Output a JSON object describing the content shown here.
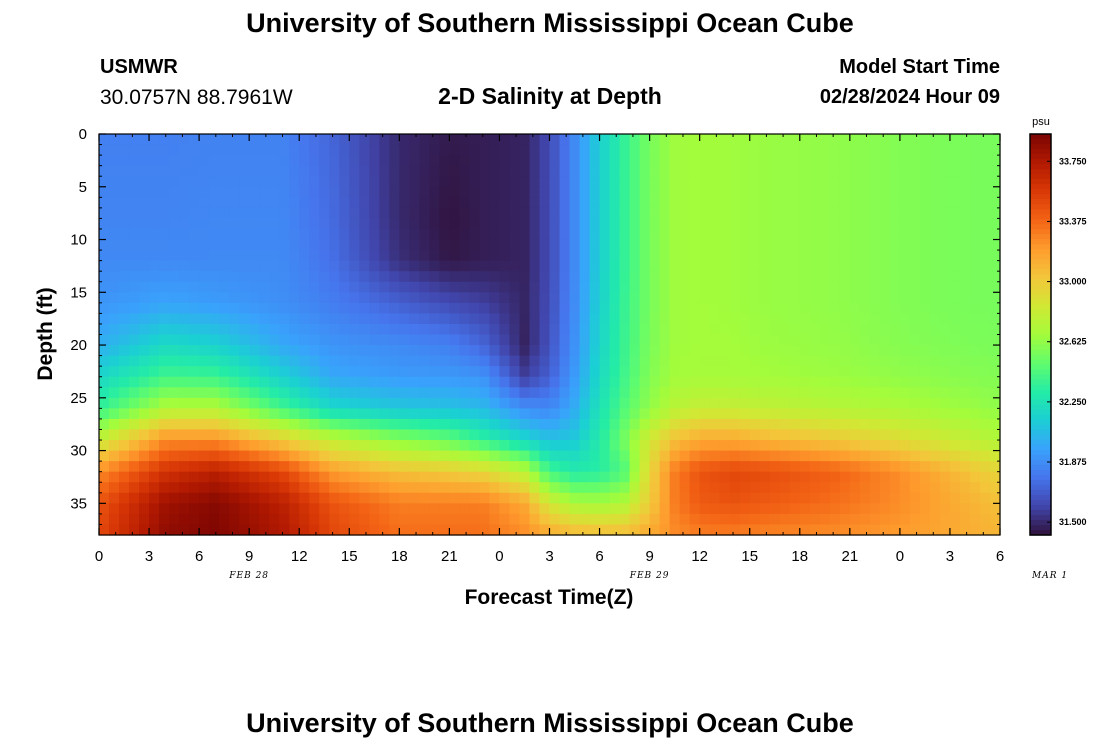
{
  "header": {
    "title": "University of Southern Mississippi Ocean Cube",
    "station": "USMWR",
    "coords": "30.0757N  88.7961W",
    "subtitle": "2-D Salinity at Depth",
    "model_start_label": "Model Start Time",
    "model_start_value": "02/28/2024 Hour 09"
  },
  "footer": {
    "title": "University of Southern Mississippi Ocean Cube"
  },
  "chart_data": {
    "type": "heatmap",
    "xlabel": "Forecast Time(Z)",
    "ylabel": "Depth (ft)",
    "x_tick_labels": [
      "0",
      "3",
      "6",
      "9",
      "12",
      "15",
      "18",
      "21",
      "0",
      "3",
      "6",
      "9",
      "12",
      "15",
      "18",
      "21",
      "0",
      "3",
      "6"
    ],
    "day_labels": [
      {
        "text": "FEB 28",
        "at_hour": 9
      },
      {
        "text": "FEB 29",
        "at_hour": 33
      },
      {
        "text": "MAR 1",
        "at_hour": 57
      }
    ],
    "xlim": [
      0,
      54
    ],
    "y_ticks": [
      0,
      5,
      10,
      15,
      20,
      25,
      30,
      35
    ],
    "ylim": [
      0,
      38
    ],
    "y_inverted": true,
    "colorbar": {
      "unit": "psu",
      "ticks": [
        "31.500",
        "31.875",
        "32.250",
        "32.625",
        "33.000",
        "33.375",
        "33.750"
      ],
      "range": [
        31.42,
        33.92
      ],
      "colors": [
        "#30123b",
        "#4145ab",
        "#4675ed",
        "#39a2fc",
        "#1bcfd4",
        "#24eca6",
        "#61fc6c",
        "#a4fc3b",
        "#d1e834",
        "#f3c63a",
        "#fe9b2d",
        "#f36315",
        "#d93806",
        "#b11901",
        "#7a0402"
      ]
    },
    "columns_hours": [
      0,
      4,
      7,
      11,
      14,
      18,
      21,
      23,
      25.5,
      27,
      28.5,
      30,
      31.5,
      33,
      34.5,
      36,
      38,
      40,
      44,
      48,
      51,
      54
    ],
    "rows_depth_ft": [
      0,
      4,
      8,
      12,
      16,
      20,
      23,
      26,
      29,
      32,
      35,
      38
    ],
    "salinity_psu": [
      [
        31.82,
        31.82,
        31.83,
        31.83,
        31.72,
        31.5,
        31.45,
        31.46,
        31.48,
        31.62,
        31.86,
        32.14,
        32.36,
        32.55,
        32.66,
        32.67,
        32.66,
        32.64,
        32.62,
        32.58,
        32.56,
        32.55
      ],
      [
        31.83,
        31.83,
        31.84,
        31.84,
        31.73,
        31.5,
        31.44,
        31.46,
        31.48,
        31.62,
        31.86,
        32.14,
        32.36,
        32.55,
        32.66,
        32.67,
        32.66,
        32.64,
        32.62,
        32.58,
        32.56,
        32.55
      ],
      [
        31.84,
        31.84,
        31.85,
        31.85,
        31.74,
        31.5,
        31.43,
        31.46,
        31.48,
        31.62,
        31.86,
        32.14,
        32.36,
        32.55,
        32.66,
        32.67,
        32.66,
        32.64,
        32.62,
        32.58,
        32.56,
        32.55
      ],
      [
        31.86,
        31.86,
        31.86,
        31.86,
        31.76,
        31.52,
        31.44,
        31.46,
        31.48,
        31.62,
        31.86,
        32.14,
        32.36,
        32.55,
        32.66,
        32.67,
        32.66,
        32.64,
        32.62,
        32.58,
        32.56,
        32.55
      ],
      [
        31.9,
        31.96,
        31.93,
        31.88,
        31.81,
        31.7,
        31.62,
        31.58,
        31.49,
        31.63,
        31.87,
        32.15,
        32.37,
        32.55,
        32.66,
        32.67,
        32.66,
        32.64,
        32.62,
        32.58,
        32.56,
        32.55
      ],
      [
        32.0,
        32.2,
        32.15,
        31.98,
        31.9,
        31.86,
        31.82,
        31.72,
        31.48,
        31.65,
        31.89,
        32.17,
        32.38,
        32.56,
        32.66,
        32.67,
        32.67,
        32.65,
        32.63,
        32.59,
        32.57,
        32.56
      ],
      [
        32.18,
        32.4,
        32.38,
        32.15,
        31.98,
        31.93,
        31.92,
        31.9,
        31.58,
        31.7,
        31.93,
        32.2,
        32.4,
        32.58,
        32.67,
        32.68,
        32.68,
        32.67,
        32.65,
        32.62,
        32.6,
        32.58
      ],
      [
        32.35,
        32.72,
        32.72,
        32.4,
        32.18,
        32.1,
        32.08,
        32.05,
        31.88,
        31.85,
        32.0,
        32.25,
        32.45,
        32.62,
        32.75,
        32.8,
        32.8,
        32.78,
        32.74,
        32.7,
        32.66,
        32.62
      ],
      [
        32.8,
        33.25,
        33.25,
        33.0,
        32.78,
        32.6,
        32.5,
        32.35,
        32.18,
        32.08,
        32.12,
        32.3,
        32.55,
        32.85,
        33.05,
        33.15,
        33.15,
        33.1,
        33.02,
        32.92,
        32.82,
        32.72
      ],
      [
        33.25,
        33.6,
        33.7,
        33.5,
        33.2,
        33.05,
        33.0,
        32.95,
        32.75,
        32.4,
        32.3,
        32.32,
        32.45,
        32.95,
        33.3,
        33.45,
        33.5,
        33.48,
        33.4,
        33.25,
        33.1,
        32.95
      ],
      [
        33.45,
        33.8,
        33.88,
        33.7,
        33.45,
        33.3,
        33.3,
        33.3,
        33.15,
        32.85,
        32.7,
        32.68,
        32.72,
        33.0,
        33.3,
        33.42,
        33.45,
        33.42,
        33.35,
        33.25,
        33.15,
        33.05
      ],
      [
        33.5,
        33.85,
        33.9,
        33.75,
        33.5,
        33.35,
        33.35,
        33.35,
        33.25,
        33.15,
        33.1,
        33.08,
        33.08,
        33.15,
        33.25,
        33.3,
        33.3,
        33.28,
        33.25,
        33.2,
        33.15,
        33.1
      ]
    ]
  }
}
